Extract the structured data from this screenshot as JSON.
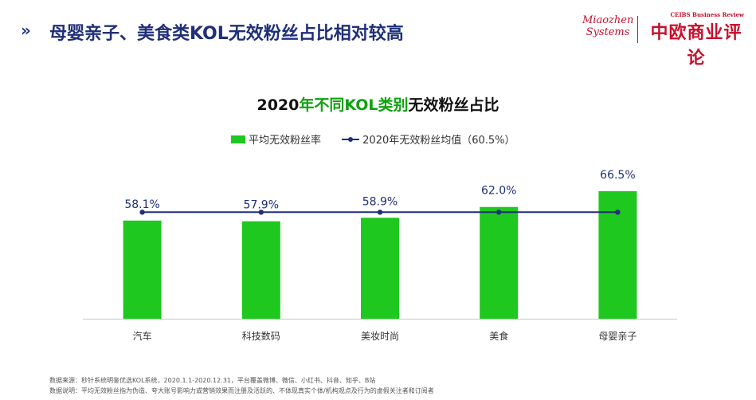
{
  "header": {
    "title": "母婴亲子、美食类KOL无效粉丝占比相对较高",
    "chevron": "»"
  },
  "logos": {
    "miaozhen_line1": "Miaozhen",
    "miaozhen_line2": "Systems",
    "ceibs_en": "CEIBS Business Review",
    "ceibs_cn": "中欧商业评论"
  },
  "colors": {
    "bar": "#1ec81e",
    "line": "#1f2f78",
    "title_accent": "#0fa10f",
    "header_text": "#1f2f78",
    "logo_red": "#c8102e"
  },
  "chart_data": {
    "type": "bar",
    "title": "2020年不同KOL类别无效粉丝占比",
    "title_parts": {
      "year": "2020",
      "accent": "年不同KOL类别",
      "rest": "无效粉丝占比"
    },
    "categories": [
      "汽车",
      "科技数码",
      "美妆时尚",
      "美食",
      "母婴亲子"
    ],
    "series": [
      {
        "name": "平均无效粉丝率",
        "type": "bar",
        "values": [
          58.1,
          57.9,
          58.9,
          62.0,
          66.5
        ],
        "labels": [
          "58.1%",
          "57.9%",
          "58.9%",
          "62.0%",
          "66.5%"
        ]
      },
      {
        "name": "2020年无效粉丝均值（60.5%）",
        "type": "line",
        "values": [
          60.5,
          60.5,
          60.5,
          60.5,
          60.5
        ]
      }
    ],
    "legend_position": "top",
    "grid": false,
    "ylim": [
      30,
      70
    ]
  },
  "footnotes": {
    "source": "数据来源：秒针系统明鉴优选KOL系统，2020.1.1-2020.12.31，平台覆盖微博、微信、小红书、抖音、知乎、B站",
    "note": "数据说明：平均无效粉丝指为伪造、夸大账号影响力或营销效果而注册及活跃的、不体现真实个体/机构观点及行为的虚假关注者和订阅者"
  }
}
